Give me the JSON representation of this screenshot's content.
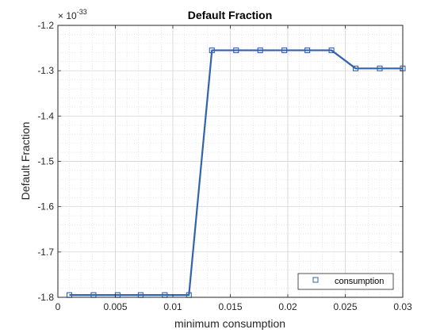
{
  "chart_data": {
    "type": "line",
    "title": "Default Fraction",
    "xlabel": "minimum consumption",
    "ylabel": "Default Fraction",
    "exponent_label": "× 10",
    "exponent_power": "-33",
    "xlim": [
      0,
      0.03
    ],
    "ylim": [
      -1.8,
      -1.2
    ],
    "x_ticks": [
      "0",
      "0.005",
      "0.01",
      "0.015",
      "0.02",
      "0.025",
      "0.03"
    ],
    "y_ticks": [
      "-1.2",
      "-1.3",
      "-1.4",
      "-1.5",
      "-1.6",
      "-1.7",
      "-1.8"
    ],
    "x_tick_values": [
      0,
      0.005,
      0.01,
      0.015,
      0.02,
      0.025,
      0.03
    ],
    "y_tick_values": [
      -1.2,
      -1.3,
      -1.4,
      -1.5,
      -1.6,
      -1.7,
      -1.8
    ],
    "grid": true,
    "minor_grid": true,
    "legend_position": "bottom-right",
    "series": [
      {
        "name": "consumption",
        "color": "#3263ac",
        "marker": "square",
        "x": [
          0.001,
          0.0031,
          0.0052,
          0.0072,
          0.0093,
          0.0114,
          0.0134,
          0.0155,
          0.0176,
          0.0197,
          0.0217,
          0.0238,
          0.0259,
          0.028,
          0.03
        ],
        "y": [
          -1.795,
          -1.795,
          -1.795,
          -1.795,
          -1.795,
          -1.795,
          -1.255,
          -1.255,
          -1.255,
          -1.255,
          -1.255,
          -1.255,
          -1.295,
          -1.295,
          -1.295
        ]
      }
    ]
  }
}
